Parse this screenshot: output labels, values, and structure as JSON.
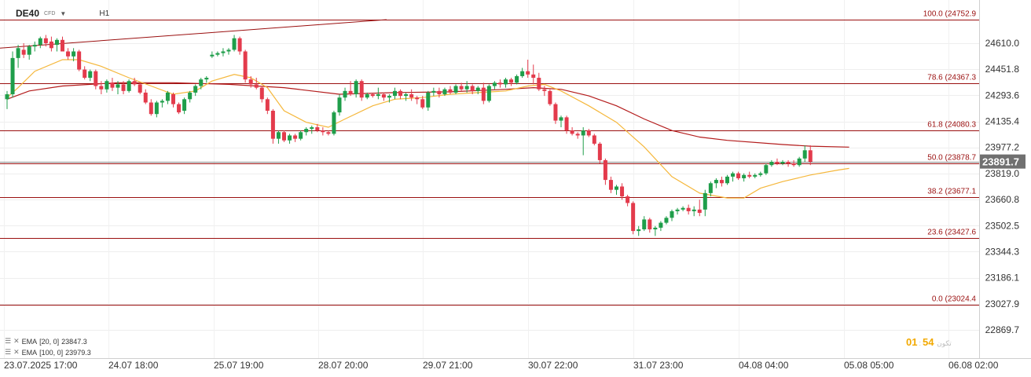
{
  "header": {
    "symbol": "DE40",
    "type": "CFD",
    "timeframe": "H1"
  },
  "legend": [
    {
      "label": "EMA",
      "params": "[20, 0]",
      "value": "23847.3",
      "color": "#f5b73b"
    },
    {
      "label": "EMA",
      "params": "[100, 0]",
      "value": "23979.3",
      "color": "#b31b1b"
    }
  ],
  "countdown": {
    "minutes": "01",
    "seconds": "54",
    "label": "تكون"
  },
  "colors": {
    "up": "#1f9e4a",
    "down": "#e33b4c",
    "fib": "#9a0f0f",
    "ema20": "#f5b73b",
    "ema100": "#b31b1b",
    "price_tag": "#707070"
  },
  "chart_data": {
    "type": "candlestick",
    "ylim": [
      22790,
      24790
    ],
    "y_ticks": [
      24610.0,
      24451.8,
      24293.6,
      24135.4,
      23977.2,
      23819.0,
      23660.8,
      23502.5,
      23344.3,
      23186.1,
      23027.9,
      22869.7
    ],
    "x_ticks": [
      "23.07.2025  17:00",
      "24.07  18:00",
      "25.07  19:00",
      "28.07  20:00",
      "29.07  21:00",
      "30.07  22:00",
      "31.07  23:00",
      "04.08  04:00",
      "05.08  05:00",
      "06.08  02:00"
    ],
    "current_price": 23891.7,
    "fib_levels": [
      {
        "label": "100.0 (24752.9",
        "value": 24752.9
      },
      {
        "label": "78.6 (24367.3",
        "value": 24367.3
      },
      {
        "label": "61.8 (24080.3",
        "value": 24080.3
      },
      {
        "label": "50.0 (23878.7",
        "value": 23878.7
      },
      {
        "label": "38.2 (23677.1",
        "value": 23677.1
      },
      {
        "label": "23.6 (23427.6",
        "value": 23427.6
      },
      {
        "label": "0.0 (23024.4",
        "value": 23024.4
      }
    ],
    "trendline": {
      "from": [
        0,
        24580
      ],
      "to": [
        68.5,
        24752.9
      ]
    },
    "candles": [
      [
        24270,
        24320,
        24210,
        24300
      ],
      [
        24300,
        24560,
        24280,
        24520
      ],
      [
        24520,
        24600,
        24460,
        24580
      ],
      [
        24570,
        24610,
        24520,
        24540
      ],
      [
        24540,
        24600,
        24510,
        24590
      ],
      [
        24590,
        24620,
        24560,
        24600
      ],
      [
        24600,
        24650,
        24580,
        24640
      ],
      [
        24640,
        24660,
        24590,
        24610
      ],
      [
        24620,
        24650,
        24560,
        24580
      ],
      [
        24600,
        24640,
        24560,
        24630
      ],
      [
        24630,
        24650,
        24560,
        24560
      ],
      [
        24560,
        24580,
        24510,
        24530
      ],
      [
        24530,
        24580,
        24500,
        24560
      ],
      [
        24560,
        24570,
        24440,
        24450
      ],
      [
        24450,
        24470,
        24390,
        24400
      ],
      [
        24400,
        24450,
        24380,
        24440
      ],
      [
        24440,
        24450,
        24330,
        24350
      ],
      [
        24350,
        24380,
        24300,
        24330
      ],
      [
        24330,
        24390,
        24310,
        24380
      ],
      [
        24370,
        24400,
        24320,
        24340
      ],
      [
        24340,
        24380,
        24300,
        24360
      ],
      [
        24360,
        24380,
        24300,
        24320
      ],
      [
        24320,
        24390,
        24310,
        24380
      ],
      [
        24380,
        24400,
        24350,
        24360
      ],
      [
        24360,
        24370,
        24300,
        24310
      ],
      [
        24310,
        24330,
        24240,
        24250
      ],
      [
        24250,
        24270,
        24170,
        24180
      ],
      [
        24180,
        24260,
        24160,
        24250
      ],
      [
        24250,
        24270,
        24220,
        24260
      ],
      [
        24260,
        24320,
        24240,
        24310
      ],
      [
        24300,
        24310,
        24220,
        24240
      ],
      [
        24240,
        24250,
        24180,
        24190
      ],
      [
        24200,
        24280,
        24180,
        24270
      ],
      [
        24270,
        24320,
        24250,
        24310
      ],
      [
        24310,
        24360,
        24290,
        24350
      ],
      [
        24350,
        24400,
        24330,
        24390
      ],
      [
        24390,
        24410,
        24370,
        24400
      ],
      [
        24530,
        24560,
        24520,
        24540
      ],
      [
        24540,
        24560,
        24530,
        24550
      ],
      [
        24550,
        24580,
        24530,
        24560
      ],
      [
        24560,
        24580,
        24540,
        24570
      ],
      [
        24570,
        24660,
        24560,
        24640
      ],
      [
        24640,
        24650,
        24540,
        24560
      ],
      [
        24560,
        24570,
        24370,
        24390
      ],
      [
        24390,
        24410,
        24340,
        24360
      ],
      [
        24360,
        24400,
        24330,
        24340
      ],
      [
        24340,
        24350,
        24250,
        24270
      ],
      [
        24270,
        24280,
        24180,
        24200
      ],
      [
        24200,
        24210,
        24000,
        24030
      ],
      [
        24030,
        24080,
        24000,
        24070
      ],
      [
        24070,
        24080,
        24010,
        24020
      ],
      [
        24020,
        24060,
        24000,
        24050
      ],
      [
        24050,
        24060,
        24010,
        24030
      ],
      [
        24030,
        24080,
        24020,
        24070
      ],
      [
        24070,
        24100,
        24050,
        24090
      ],
      [
        24090,
        24110,
        24060,
        24100
      ],
      [
        24100,
        24120,
        24070,
        24080
      ],
      [
        24080,
        24100,
        24050,
        24070
      ],
      [
        24070,
        24080,
        24050,
        24060
      ],
      [
        24060,
        24200,
        24050,
        24190
      ],
      [
        24190,
        24300,
        24170,
        24280
      ],
      [
        24280,
        24340,
        24260,
        24320
      ],
      [
        24320,
        24380,
        24290,
        24300
      ],
      [
        24300,
        24390,
        24280,
        24380
      ],
      [
        24380,
        24390,
        24260,
        24280
      ],
      [
        24280,
        24310,
        24270,
        24300
      ],
      [
        24300,
        24310,
        24280,
        24290
      ],
      [
        24290,
        24340,
        24270,
        24300
      ],
      [
        24300,
        24310,
        24260,
        24280
      ],
      [
        24280,
        24300,
        24250,
        24290
      ],
      [
        24290,
        24340,
        24270,
        24320
      ],
      [
        24320,
        24330,
        24270,
        24290
      ],
      [
        24290,
        24310,
        24260,
        24300
      ],
      [
        24300,
        24330,
        24260,
        24280
      ],
      [
        24280,
        24290,
        24240,
        24270
      ],
      [
        24270,
        24290,
        24210,
        24220
      ],
      [
        24220,
        24320,
        24200,
        24310
      ],
      [
        24310,
        24340,
        24290,
        24320
      ],
      [
        24320,
        24340,
        24280,
        24300
      ],
      [
        24300,
        24340,
        24290,
        24330
      ],
      [
        24330,
        24350,
        24300,
        24310
      ],
      [
        24310,
        24360,
        24300,
        24350
      ],
      [
        24350,
        24370,
        24320,
        24330
      ],
      [
        24330,
        24380,
        24310,
        24350
      ],
      [
        24350,
        24360,
        24300,
        24320
      ],
      [
        24320,
        24350,
        24300,
        24340
      ],
      [
        24340,
        24370,
        24240,
        24260
      ],
      [
        24260,
        24360,
        24250,
        24350
      ],
      [
        24350,
        24380,
        24330,
        24370
      ],
      [
        24370,
        24390,
        24340,
        24360
      ],
      [
        24360,
        24400,
        24340,
        24390
      ],
      [
        24390,
        24400,
        24350,
        24370
      ],
      [
        24370,
        24420,
        24360,
        24410
      ],
      [
        24410,
        24460,
        24400,
        24440
      ],
      [
        24440,
        24510,
        24400,
        24420
      ],
      [
        24420,
        24480,
        24360,
        24400
      ],
      [
        24400,
        24430,
        24320,
        24330
      ],
      [
        24330,
        24350,
        24290,
        24320
      ],
      [
        24320,
        24330,
        24230,
        24240
      ],
      [
        24240,
        24250,
        24120,
        24140
      ],
      [
        24140,
        24170,
        24100,
        24160
      ],
      [
        24160,
        24170,
        24060,
        24080
      ],
      [
        24080,
        24100,
        24050,
        24060
      ],
      [
        24060,
        24070,
        24030,
        24050
      ],
      [
        24050,
        24100,
        23930,
        24080
      ],
      [
        24080,
        24090,
        24040,
        24050
      ],
      [
        24050,
        24060,
        23990,
        24000
      ],
      [
        24000,
        24010,
        23880,
        23900
      ],
      [
        23900,
        23910,
        23750,
        23780
      ],
      [
        23780,
        23800,
        23700,
        23720
      ],
      [
        23720,
        23750,
        23690,
        23740
      ],
      [
        23740,
        23760,
        23660,
        23680
      ],
      [
        23680,
        23690,
        23620,
        23640
      ],
      [
        23640,
        23650,
        23450,
        23470
      ],
      [
        23470,
        23500,
        23440,
        23480
      ],
      [
        23480,
        23560,
        23470,
        23540
      ],
      [
        23540,
        23550,
        23460,
        23480
      ],
      [
        23480,
        23500,
        23440,
        23490
      ],
      [
        23490,
        23530,
        23470,
        23520
      ],
      [
        23520,
        23560,
        23510,
        23550
      ],
      [
        23550,
        23600,
        23530,
        23590
      ],
      [
        23590,
        23610,
        23570,
        23600
      ],
      [
        23600,
        23620,
        23590,
        23610
      ],
      [
        23610,
        23630,
        23570,
        23590
      ],
      [
        23590,
        23620,
        23560,
        23600
      ],
      [
        23600,
        23660,
        23560,
        23580
      ],
      [
        23600,
        23720,
        23560,
        23700
      ],
      [
        23700,
        23770,
        23680,
        23760
      ],
      [
        23760,
        23790,
        23730,
        23780
      ],
      [
        23780,
        23800,
        23740,
        23760
      ],
      [
        23760,
        23810,
        23750,
        23800
      ],
      [
        23800,
        23830,
        23770,
        23820
      ],
      [
        23820,
        23830,
        23780,
        23790
      ],
      [
        23790,
        23820,
        23770,
        23810
      ],
      [
        23810,
        23830,
        23790,
        23800
      ],
      [
        23800,
        23820,
        23790,
        23810
      ],
      [
        23810,
        23830,
        23800,
        23820
      ],
      [
        23820,
        23880,
        23810,
        23870
      ],
      [
        23870,
        23900,
        23860,
        23890
      ],
      [
        23890,
        23910,
        23870,
        23880
      ],
      [
        23880,
        23900,
        23870,
        23890
      ],
      [
        23890,
        23900,
        23860,
        23880
      ],
      [
        23880,
        23900,
        23860,
        23870
      ],
      [
        23870,
        23920,
        23860,
        23910
      ],
      [
        23910,
        23990,
        23890,
        23960
      ],
      [
        23960,
        23990,
        23870,
        23890
      ]
    ],
    "ema20": [
      [
        0,
        24280
      ],
      [
        2,
        24340
      ],
      [
        5,
        24440
      ],
      [
        10,
        24510
      ],
      [
        13,
        24510
      ],
      [
        17,
        24470
      ],
      [
        22,
        24400
      ],
      [
        26,
        24350
      ],
      [
        30,
        24300
      ],
      [
        34,
        24320
      ],
      [
        37,
        24380
      ],
      [
        41,
        24420
      ],
      [
        44,
        24400
      ],
      [
        47,
        24340
      ],
      [
        50,
        24200
      ],
      [
        54,
        24130
      ],
      [
        58,
        24100
      ],
      [
        61,
        24150
      ],
      [
        66,
        24230
      ],
      [
        70,
        24270
      ],
      [
        75,
        24280
      ],
      [
        80,
        24300
      ],
      [
        85,
        24310
      ],
      [
        90,
        24320
      ],
      [
        94,
        24350
      ],
      [
        97,
        24360
      ],
      [
        100,
        24320
      ],
      [
        105,
        24230
      ],
      [
        110,
        24130
      ],
      [
        115,
        23980
      ],
      [
        120,
        23800
      ],
      [
        125,
        23700
      ],
      [
        130,
        23670
      ],
      [
        133,
        23670
      ],
      [
        136,
        23730
      ],
      [
        140,
        23770
      ],
      [
        145,
        23810
      ],
      [
        150,
        23840
      ],
      [
        152,
        23850
      ]
    ],
    "ema100": [
      [
        0,
        24270
      ],
      [
        4,
        24320
      ],
      [
        10,
        24350
      ],
      [
        20,
        24370
      ],
      [
        30,
        24370
      ],
      [
        40,
        24360
      ],
      [
        50,
        24340
      ],
      [
        55,
        24320
      ],
      [
        60,
        24300
      ],
      [
        70,
        24310
      ],
      [
        80,
        24315
      ],
      [
        90,
        24330
      ],
      [
        95,
        24340
      ],
      [
        100,
        24330
      ],
      [
        105,
        24290
      ],
      [
        110,
        24230
      ],
      [
        115,
        24150
      ],
      [
        120,
        24080
      ],
      [
        125,
        24040
      ],
      [
        130,
        24020
      ],
      [
        140,
        23995
      ],
      [
        145,
        23985
      ],
      [
        152,
        23979
      ]
    ]
  }
}
